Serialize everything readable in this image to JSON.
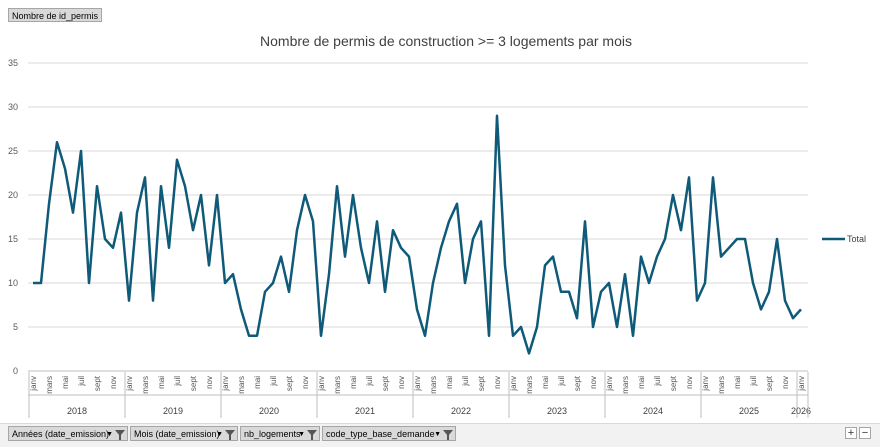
{
  "page_field": "Nombre de id_permis",
  "filters": [
    {
      "label": "Années (date_emission)"
    },
    {
      "label": "Mois (date_emission)"
    },
    {
      "label": "nb_logements"
    },
    {
      "label": "code_type_base_demande"
    }
  ],
  "zoom": {
    "plus": "+",
    "minus": "−"
  },
  "colors": {
    "line": "#0e5a78",
    "grid": "#d9d9d9",
    "axis": "#bfbfbf",
    "text": "#595959"
  },
  "chart_data": {
    "type": "line",
    "title": "Nombre de permis de construction >= 3 logements par mois",
    "xlabel": "",
    "ylabel": "",
    "ylim": [
      0,
      35
    ],
    "yticks": [
      0,
      5,
      10,
      15,
      20,
      25,
      30,
      35
    ],
    "legend": "right",
    "grid": true,
    "month_labels": [
      "janv",
      "mars",
      "mai",
      "juil",
      "sept",
      "nov"
    ],
    "years": [
      "2018",
      "2019",
      "2020",
      "2021",
      "2022",
      "2023",
      "2024",
      "2025",
      "2026"
    ],
    "series": [
      {
        "name": "Total",
        "values": [
          10,
          10,
          19,
          26,
          23,
          18,
          25,
          10,
          21,
          15,
          14,
          18,
          8,
          18,
          22,
          8,
          21,
          14,
          24,
          21,
          16,
          20,
          12,
          20,
          10,
          11,
          7,
          4,
          4,
          9,
          10,
          13,
          9,
          16,
          20,
          17,
          4,
          11,
          21,
          13,
          20,
          14,
          10,
          17,
          9,
          16,
          14,
          13,
          7,
          4,
          10,
          14,
          17,
          19,
          10,
          15,
          17,
          4,
          29,
          12,
          4,
          5,
          2,
          5,
          12,
          13,
          9,
          9,
          6,
          17,
          5,
          9,
          10,
          5,
          11,
          4,
          13,
          10,
          13,
          15,
          20,
          16,
          22,
          8,
          10,
          22,
          13,
          14,
          15,
          15,
          10,
          7,
          9,
          15,
          8,
          6,
          7
        ]
      }
    ]
  }
}
